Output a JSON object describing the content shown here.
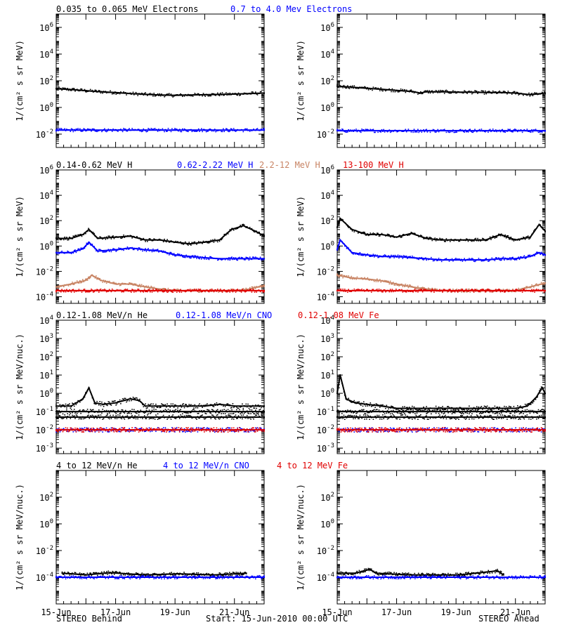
{
  "colors": {
    "black": "#000000",
    "blue": "#0000ff",
    "tan": "#c88464",
    "red": "#e00000"
  },
  "footer": {
    "left": "STEREO Behind",
    "center": "Start: 15-Jun-2010 00:00 UTC",
    "right": "STEREO Ahead"
  },
  "chart_data": [
    {
      "type": "scatter",
      "panel": "electrons",
      "legend": [
        {
          "text": "0.035 to 0.065 MeV Electrons",
          "color": "black"
        },
        {
          "text": "0.7 to 4.0 Mev Electrons",
          "color": "blue"
        }
      ],
      "ylabel": "1/(cm² s sr MeV)",
      "yscale": "log",
      "ylim": [
        0.001,
        10000000
      ],
      "yticks": [
        {
          "v": 1000000,
          "label": "10",
          "exp": "6"
        },
        {
          "v": 10000,
          "label": "10",
          "exp": "4"
        },
        {
          "v": 100,
          "label": "10",
          "exp": "2"
        },
        {
          "v": 1,
          "label": "10",
          "exp": "0"
        },
        {
          "v": 0.01,
          "label": "10",
          "exp": "-2"
        }
      ],
      "xlim": [
        0,
        7
      ],
      "behind": {
        "series": [
          {
            "color": "black",
            "t": [
              0,
              0.5,
              1,
              1.5,
              2,
              2.5,
              3,
              3.5,
              4,
              4.5,
              5,
              5.5,
              6,
              6.5,
              7
            ],
            "y": [
              25,
              22,
              18,
              15,
              13,
              11,
              9.5,
              8.5,
              8,
              8.5,
              9,
              9.5,
              10,
              11,
              12
            ]
          },
          {
            "color": "blue",
            "t": [
              0,
              1,
              2,
              3,
              4,
              5,
              6,
              7
            ],
            "y": [
              0.02,
              0.02,
              0.02,
              0.02,
              0.02,
              0.02,
              0.02,
              0.02
            ]
          }
        ]
      },
      "ahead": {
        "series": [
          {
            "color": "black",
            "t": [
              0,
              0.5,
              1,
              1.5,
              2,
              2.5,
              2.8,
              3,
              3.5,
              4,
              4.5,
              5,
              5.5,
              6,
              6.5,
              7
            ],
            "y": [
              40,
              33,
              27,
              23,
              19,
              16,
              12,
              15,
              15,
              14,
              14,
              13,
              13,
              12,
              9,
              12
            ]
          },
          {
            "color": "blue",
            "t": [
              0,
              1,
              2,
              3,
              4,
              5,
              6,
              7
            ],
            "y": [
              0.018,
              0.018,
              0.018,
              0.018,
              0.018,
              0.018,
              0.018,
              0.018
            ]
          }
        ]
      }
    },
    {
      "type": "scatter",
      "panel": "protons",
      "legend": [
        {
          "text": "0.14-0.62 MeV H",
          "color": "black"
        },
        {
          "text": "0.62-2.22 MeV H",
          "color": "blue"
        },
        {
          "text": "2.2-12 MeV H",
          "color": "tan"
        },
        {
          "text": "13-100 MeV H",
          "color": "red"
        }
      ],
      "ylabel": "1/(cm² s sr MeV)",
      "yscale": "log",
      "ylim": [
        3e-05,
        1000000
      ],
      "yticks": [
        {
          "v": 1000000,
          "label": "10",
          "exp": "6"
        },
        {
          "v": 10000,
          "label": "10",
          "exp": "4"
        },
        {
          "v": 100,
          "label": "10",
          "exp": "2"
        },
        {
          "v": 1,
          "label": "10",
          "exp": "0"
        },
        {
          "v": 0.01,
          "label": "10",
          "exp": "-2"
        },
        {
          "v": 0.0001,
          "label": "10",
          "exp": "-4"
        }
      ],
      "xlim": [
        0,
        7
      ],
      "behind": {
        "series": [
          {
            "color": "black",
            "t": [
              0,
              0.5,
              0.9,
              1.1,
              1.4,
              2,
              2.5,
              3,
              3.5,
              4,
              4.5,
              5,
              5.5,
              5.9,
              6.3,
              6.7,
              7
            ],
            "y": [
              4,
              4,
              8,
              20,
              4,
              5,
              6,
              3,
              3,
              2,
              1.5,
              2,
              3,
              20,
              40,
              15,
              6
            ]
          },
          {
            "color": "blue",
            "t": [
              0,
              0.5,
              0.9,
              1.1,
              1.4,
              2,
              2.5,
              3,
              3.5,
              4,
              4.5,
              5,
              5.5,
              6,
              6.5,
              7
            ],
            "y": [
              0.3,
              0.3,
              0.6,
              2,
              0.4,
              0.5,
              0.7,
              0.5,
              0.4,
              0.2,
              0.15,
              0.12,
              0.1,
              0.1,
              0.1,
              0.1
            ]
          },
          {
            "color": "tan",
            "t": [
              0,
              0.5,
              1,
              1.2,
              1.5,
              2,
              2.5,
              3,
              3.5,
              4,
              4.5,
              5,
              5.5,
              6,
              6.5,
              7
            ],
            "y": [
              0.0006,
              0.001,
              0.002,
              0.005,
              0.002,
              0.001,
              0.001,
              0.0006,
              0.0004,
              0.0003,
              0.0003,
              0.0003,
              0.0003,
              0.0003,
              0.0004,
              0.0008
            ]
          },
          {
            "color": "red",
            "t": [
              0,
              1,
              2,
              3,
              4,
              5,
              6,
              7
            ],
            "y": [
              0.0003,
              0.0003,
              0.0003,
              0.0003,
              0.0003,
              0.0003,
              0.0003,
              0.0003
            ]
          }
        ]
      },
      "ahead": {
        "series": [
          {
            "color": "black",
            "t": [
              0,
              0.1,
              0.5,
              1,
              1.5,
              2,
              2.5,
              3,
              3.5,
              4,
              4.5,
              5,
              5.5,
              6,
              6.5,
              6.8,
              7
            ],
            "y": [
              30,
              150,
              20,
              8,
              8,
              5,
              10,
              4,
              3,
              3,
              3,
              3,
              8,
              3,
              5,
              50,
              15
            ]
          },
          {
            "color": "blue",
            "t": [
              0,
              0.1,
              0.5,
              1,
              1.5,
              2,
              2.5,
              3,
              3.5,
              4,
              4.5,
              5,
              5.5,
              6,
              6.5,
              6.8,
              7
            ],
            "y": [
              0.5,
              3,
              0.3,
              0.2,
              0.15,
              0.15,
              0.12,
              0.1,
              0.08,
              0.08,
              0.08,
              0.08,
              0.1,
              0.1,
              0.15,
              0.3,
              0.2
            ]
          },
          {
            "color": "tan",
            "t": [
              0,
              0.5,
              1,
              1.5,
              2,
              2.5,
              3,
              3.5,
              4,
              4.5,
              5,
              5.5,
              6,
              6.5,
              7
            ],
            "y": [
              0.005,
              0.003,
              0.0025,
              0.0018,
              0.001,
              0.0006,
              0.0004,
              0.0003,
              0.0003,
              0.0003,
              0.0003,
              0.0003,
              0.0003,
              0.0006,
              0.0012
            ]
          },
          {
            "color": "red",
            "t": [
              0,
              1,
              2,
              3,
              4,
              5,
              6,
              7
            ],
            "y": [
              0.0003,
              0.0003,
              0.0003,
              0.0003,
              0.0003,
              0.0003,
              0.0003,
              0.0003
            ]
          }
        ]
      }
    },
    {
      "type": "scatter",
      "panel": "suprathermal-ions",
      "legend": [
        {
          "text": "0.12-1.08 MeV/n He",
          "color": "black"
        },
        {
          "text": "0.12-1.08 MeV/n CNO",
          "color": "blue"
        },
        {
          "text": "0.12-1.08 MeV Fe",
          "color": "red"
        }
      ],
      "ylabel": "1/(cm² s sr MeV/nuc.)",
      "yscale": "log",
      "ylim": [
        0.0005,
        10000
      ],
      "yticks": [
        {
          "v": 10000,
          "label": "10",
          "exp": "4"
        },
        {
          "v": 1000,
          "label": "10",
          "exp": "3"
        },
        {
          "v": 100,
          "label": "10",
          "exp": "2"
        },
        {
          "v": 10,
          "label": "10",
          "exp": "1"
        },
        {
          "v": 1,
          "label": "10",
          "exp": "0"
        },
        {
          "v": 0.1,
          "label": "10",
          "exp": "-1"
        },
        {
          "v": 0.01,
          "label": "10",
          "exp": "-2"
        },
        {
          "v": 0.001,
          "label": "10",
          "exp": "-3"
        }
      ],
      "xlim": [
        0,
        7
      ],
      "behind": {
        "series": [
          {
            "color": "black",
            "t": [
              0,
              0.5,
              0.9,
              1.1,
              1.3,
              1.6,
              2,
              2.5,
              2.8,
              3,
              3.5,
              4,
              4.5,
              5,
              5.5,
              6,
              6.5,
              7
            ],
            "y": [
              0.2,
              0.2,
              0.5,
              2,
              0.3,
              0.25,
              0.3,
              0.5,
              0.4,
              0.2,
              0.2,
              0.2,
              0.2,
              0.2,
              0.25,
              0.2,
              0.2,
              0.2
            ]
          },
          {
            "color": "black",
            "t": [
              0,
              1,
              2,
              3,
              4,
              5,
              6,
              7
            ],
            "y": [
              0.1,
              0.1,
              0.1,
              0.1,
              0.1,
              0.1,
              0.1,
              0.1
            ]
          },
          {
            "color": "black",
            "t": [
              0,
              1,
              2,
              3,
              4,
              5,
              6,
              7
            ],
            "y": [
              0.05,
              0.05,
              0.05,
              0.05,
              0.05,
              0.05,
              0.05,
              0.05
            ]
          },
          {
            "color": "blue",
            "t": [
              0,
              1,
              2,
              3,
              4,
              5,
              6,
              7
            ],
            "y": [
              0.01,
              0.01,
              0.01,
              0.01,
              0.01,
              0.01,
              0.01,
              0.01
            ]
          },
          {
            "color": "red",
            "t": [
              0,
              1,
              2,
              3,
              4,
              5,
              6,
              7
            ],
            "y": [
              0.01,
              0.01,
              0.01,
              0.01,
              0.01,
              0.01,
              0.01,
              0.01
            ]
          }
        ]
      },
      "ahead": {
        "series": [
          {
            "color": "black",
            "t": [
              0,
              0.1,
              0.3,
              0.6,
              1,
              1.5,
              2,
              2.5,
              3,
              3.5,
              4,
              4.5,
              5,
              5.5,
              6,
              6.4,
              6.7,
              6.9,
              7
            ],
            "y": [
              1,
              10,
              0.5,
              0.3,
              0.25,
              0.2,
              0.15,
              0.15,
              0.15,
              0.15,
              0.15,
              0.15,
              0.15,
              0.15,
              0.15,
              0.2,
              0.6,
              2,
              1
            ]
          },
          {
            "color": "black",
            "t": [
              0,
              1,
              2,
              3,
              4,
              5,
              6,
              7
            ],
            "y": [
              0.1,
              0.1,
              0.1,
              0.1,
              0.1,
              0.1,
              0.1,
              0.1
            ]
          },
          {
            "color": "black",
            "t": [
              0,
              1,
              2,
              3,
              4,
              5,
              6,
              7
            ],
            "y": [
              0.05,
              0.05,
              0.05,
              0.05,
              0.05,
              0.05,
              0.05,
              0.05
            ]
          },
          {
            "color": "blue",
            "t": [
              0,
              1,
              2,
              3,
              4,
              5,
              6,
              7
            ],
            "y": [
              0.01,
              0.01,
              0.01,
              0.01,
              0.01,
              0.01,
              0.01,
              0.01
            ]
          },
          {
            "color": "red",
            "t": [
              0,
              1,
              2,
              3,
              4,
              5,
              6,
              7
            ],
            "y": [
              0.01,
              0.01,
              0.01,
              0.01,
              0.01,
              0.01,
              0.01,
              0.01
            ]
          }
        ]
      }
    },
    {
      "type": "scatter",
      "panel": "energetic-ions",
      "legend": [
        {
          "text": "4 to 12 MeV/n He",
          "color": "black"
        },
        {
          "text": "4 to 12 MeV/n CNO",
          "color": "blue"
        },
        {
          "text": "4 to 12 MeV Fe",
          "color": "red"
        }
      ],
      "ylabel": "1/(cm² s sr MeV/nuc.)",
      "yscale": "log",
      "ylim": [
        1e-06,
        10000
      ],
      "yticks": [
        {
          "v": 100,
          "label": "10",
          "exp": "2"
        },
        {
          "v": 1,
          "label": "10",
          "exp": "0"
        },
        {
          "v": 0.01,
          "label": "10",
          "exp": "-2"
        },
        {
          "v": 0.0001,
          "label": "10",
          "exp": "-4"
        }
      ],
      "xlim": [
        0,
        7
      ],
      "xticks": [
        {
          "v": 0,
          "label": "15-Jun"
        },
        {
          "v": 2,
          "label": "17-Jun"
        },
        {
          "v": 4,
          "label": "19-Jun"
        },
        {
          "v": 6,
          "label": "21-Jun"
        }
      ],
      "behind": {
        "series": [
          {
            "color": "black",
            "t": [
              0.2,
              0.5,
              1,
              1.8,
              3,
              4.1,
              5.3,
              6.4
            ],
            "y": [
              0.0002,
              0.00018,
              0.00015,
              0.00022,
              0.00015,
              0.00018,
              0.00015,
              0.0002
            ]
          },
          {
            "color": "blue",
            "t": [
              0,
              1,
              2,
              3,
              4,
              5,
              6,
              7
            ],
            "y": [
              0.0001,
              0.0001,
              0.0001,
              0.0001,
              0.0001,
              0.0001,
              0.0001,
              0.0001
            ]
          }
        ]
      },
      "ahead": {
        "series": [
          {
            "color": "black",
            "t": [
              0,
              0.3,
              0.6,
              0.9,
              1.1,
              1.3,
              2.5,
              4.1,
              5.4,
              5.6
            ],
            "y": [
              0.0002,
              0.0002,
              0.0002,
              0.0003,
              0.0004,
              0.0002,
              0.00015,
              0.00015,
              0.0003,
              0.00015
            ]
          },
          {
            "color": "blue",
            "t": [
              0,
              1,
              2,
              3,
              4,
              5,
              6,
              7
            ],
            "y": [
              0.0001,
              0.0001,
              0.0001,
              0.0001,
              0.0001,
              0.0001,
              0.0001,
              0.0001
            ]
          }
        ]
      }
    }
  ]
}
